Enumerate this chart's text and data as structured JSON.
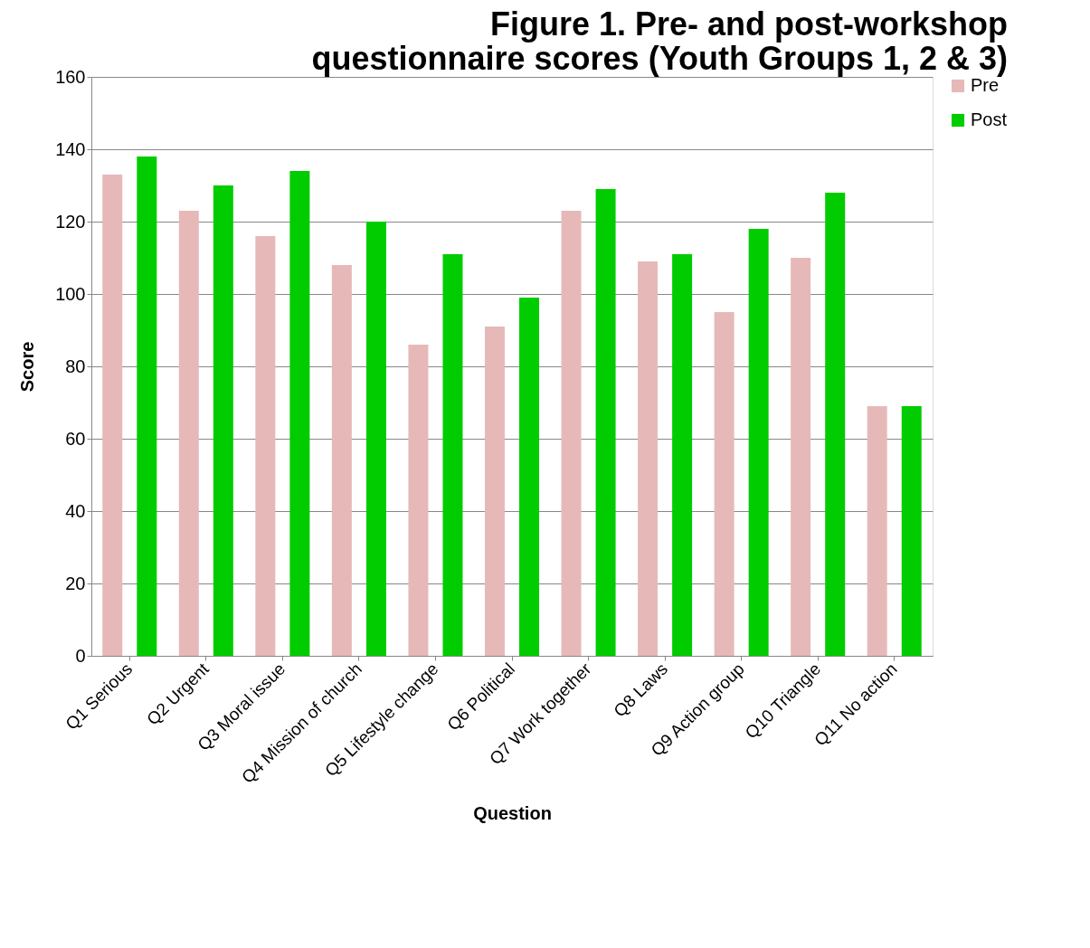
{
  "chart_data": {
    "type": "bar",
    "title": [
      "Figure 1. Pre- and post-workshop",
      "questionnaire scores (Youth Groups 1, 2 & 3)"
    ],
    "xlabel": "Question",
    "ylabel": "Score",
    "categories": [
      "Q1 Serious",
      "Q2 Urgent",
      "Q3 Moral issue",
      "Q4 Mission of church",
      "Q5 Lifestyle change",
      "Q6 Political",
      "Q7 Work together",
      "Q8 Laws",
      "Q9 Action group",
      "Q10 Triangle",
      "Q11 No action"
    ],
    "series": [
      {
        "name": "Pre",
        "color": "#e6b9b8",
        "values": [
          133,
          123,
          116,
          108,
          86,
          91,
          123,
          109,
          95,
          110,
          69
        ]
      },
      {
        "name": "Post",
        "color": "#00cc00",
        "values": [
          138,
          130,
          134,
          120,
          111,
          99,
          129,
          111,
          118,
          128,
          69
        ]
      }
    ],
    "ylim": [
      0,
      160
    ],
    "yticks": [
      0,
      20,
      40,
      60,
      80,
      100,
      120,
      140,
      160
    ],
    "grid": "y",
    "legend": "right"
  }
}
